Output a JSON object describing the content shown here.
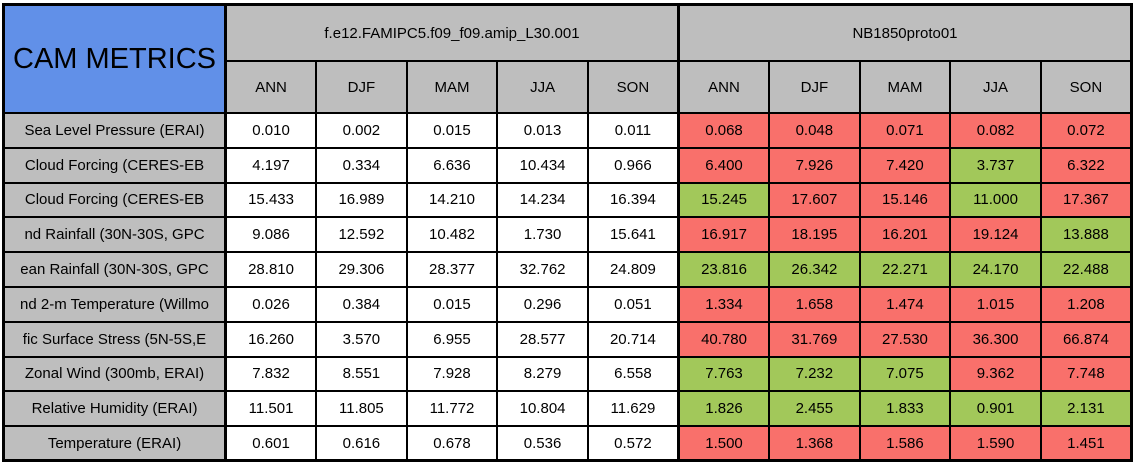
{
  "colors": {
    "title_bg": "#6190E8",
    "header_bg": "#BEBEBE",
    "label_bg": "#BEBEBE",
    "cell_white": "#FFFFFF",
    "cell_red": "#F9706B",
    "cell_green": "#A2C85A",
    "border": "#000000",
    "text": "#000000"
  },
  "chart_data": {
    "type": "table",
    "title": "CAM METRICS",
    "column_groups": [
      "f.e12.FAMIPC5.f09_f09.amip_L30.001",
      "NB1850proto01"
    ],
    "seasons": [
      "ANN",
      "DJF",
      "MAM",
      "JJA",
      "SON"
    ],
    "color_rule": "NB1850proto01 cells: green = lower than matching f.e12.FAMIPC5 value, red = higher",
    "rows": [
      {
        "label": "Sea Level Pressure (ERAI)",
        "amip": [
          "0.010",
          "0.002",
          "0.015",
          "0.013",
          "0.011"
        ],
        "nb1850": [
          "0.068",
          "0.048",
          "0.071",
          "0.082",
          "0.072"
        ],
        "nb1850_status": [
          "red",
          "red",
          "red",
          "red",
          "red"
        ]
      },
      {
        "label": "Cloud Forcing (CERES-EB",
        "amip": [
          "4.197",
          "0.334",
          "6.636",
          "10.434",
          "0.966"
        ],
        "nb1850": [
          "6.400",
          "7.926",
          "7.420",
          "3.737",
          "6.322"
        ],
        "nb1850_status": [
          "red",
          "red",
          "red",
          "green",
          "red"
        ]
      },
      {
        "label": "Cloud Forcing (CERES-EB",
        "amip": [
          "15.433",
          "16.989",
          "14.210",
          "14.234",
          "16.394"
        ],
        "nb1850": [
          "15.245",
          "17.607",
          "15.146",
          "11.000",
          "17.367"
        ],
        "nb1850_status": [
          "green",
          "red",
          "red",
          "green",
          "red"
        ]
      },
      {
        "label": "nd Rainfall (30N-30S, GPC",
        "amip": [
          "9.086",
          "12.592",
          "10.482",
          "1.730",
          "15.641"
        ],
        "nb1850": [
          "16.917",
          "18.195",
          "16.201",
          "19.124",
          "13.888"
        ],
        "nb1850_status": [
          "red",
          "red",
          "red",
          "red",
          "green"
        ]
      },
      {
        "label": "ean Rainfall (30N-30S, GPC",
        "amip": [
          "28.810",
          "29.306",
          "28.377",
          "32.762",
          "24.809"
        ],
        "nb1850": [
          "23.816",
          "26.342",
          "22.271",
          "24.170",
          "22.488"
        ],
        "nb1850_status": [
          "green",
          "green",
          "green",
          "green",
          "green"
        ]
      },
      {
        "label": "nd 2-m Temperature (Willmo",
        "amip": [
          "0.026",
          "0.384",
          "0.015",
          "0.296",
          "0.051"
        ],
        "nb1850": [
          "1.334",
          "1.658",
          "1.474",
          "1.015",
          "1.208"
        ],
        "nb1850_status": [
          "red",
          "red",
          "red",
          "red",
          "red"
        ]
      },
      {
        "label": "fic Surface Stress (5N-5S,E",
        "amip": [
          "16.260",
          "3.570",
          "6.955",
          "28.577",
          "20.714"
        ],
        "nb1850": [
          "40.780",
          "31.769",
          "27.530",
          "36.300",
          "66.874"
        ],
        "nb1850_status": [
          "red",
          "red",
          "red",
          "red",
          "red"
        ]
      },
      {
        "label": "Zonal Wind (300mb, ERAI)",
        "amip": [
          "7.832",
          "8.551",
          "7.928",
          "8.279",
          "6.558"
        ],
        "nb1850": [
          "7.763",
          "7.232",
          "7.075",
          "9.362",
          "7.748"
        ],
        "nb1850_status": [
          "green",
          "green",
          "green",
          "red",
          "red"
        ]
      },
      {
        "label": "Relative Humidity (ERAI)",
        "amip": [
          "11.501",
          "11.805",
          "11.772",
          "10.804",
          "11.629"
        ],
        "nb1850": [
          "1.826",
          "2.455",
          "1.833",
          "0.901",
          "2.131"
        ],
        "nb1850_status": [
          "green",
          "green",
          "green",
          "green",
          "green"
        ]
      },
      {
        "label": "Temperature (ERAI)",
        "amip": [
          "0.601",
          "0.616",
          "0.678",
          "0.536",
          "0.572"
        ],
        "nb1850": [
          "1.500",
          "1.368",
          "1.586",
          "1.590",
          "1.451"
        ],
        "nb1850_status": [
          "red",
          "red",
          "red",
          "red",
          "red"
        ]
      }
    ]
  }
}
